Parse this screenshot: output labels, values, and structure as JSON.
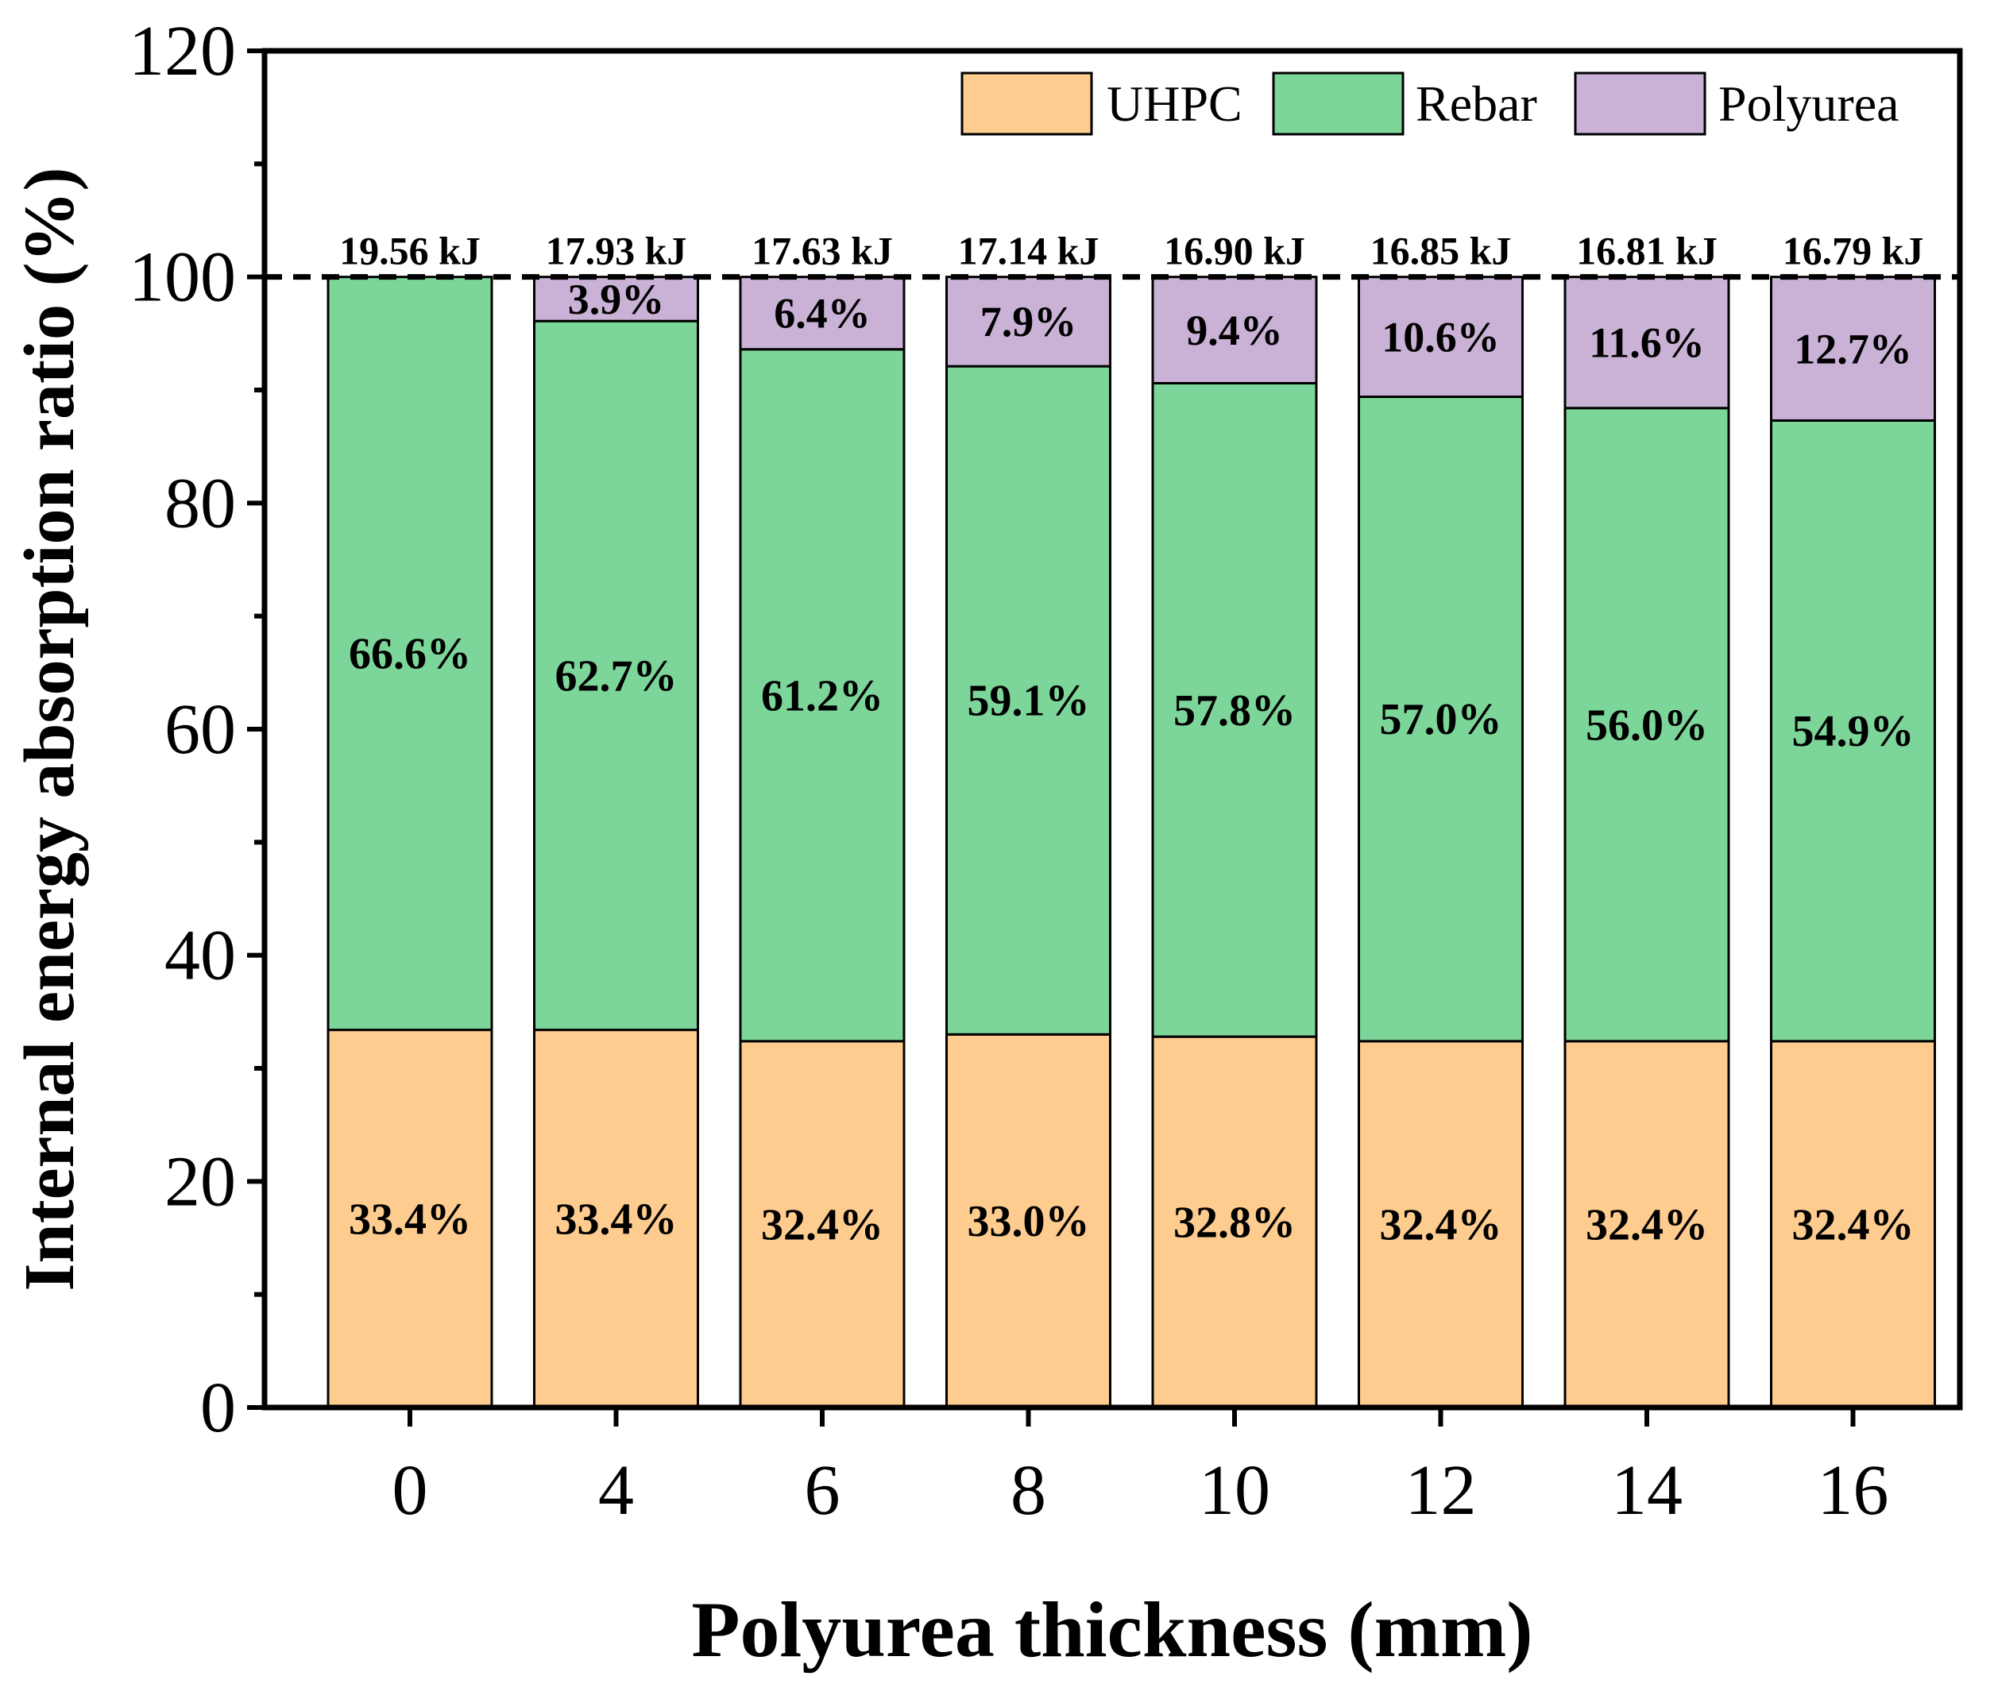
{
  "colors": {
    "UHPC": "#FECC8F",
    "Rebar": "#7DD699",
    "Polyurea": "#CAB2D6",
    "axis": "#000000"
  },
  "chart_data": {
    "type": "bar",
    "stacked": true,
    "title": "",
    "xlabel": "Polyurea thickness (mm)",
    "ylabel": "Internal energy absorption ratio (%)",
    "ylim": [
      0,
      120
    ],
    "yticks": [
      0,
      20,
      40,
      60,
      80,
      100,
      120
    ],
    "categories": [
      "0",
      "4",
      "6",
      "8",
      "10",
      "12",
      "14",
      "16"
    ],
    "series": [
      {
        "name": "UHPC",
        "values": [
          33.4,
          33.4,
          32.4,
          33.0,
          32.8,
          32.4,
          32.4,
          32.4
        ],
        "labels": [
          "33.4%",
          "33.4%",
          "32.4%",
          "33.0%",
          "32.8%",
          "32.4%",
          "32.4%",
          "32.4%"
        ]
      },
      {
        "name": "Rebar",
        "values": [
          66.6,
          62.7,
          61.2,
          59.1,
          57.8,
          57.0,
          56.0,
          54.9
        ],
        "labels": [
          "66.6%",
          "62.7%",
          "61.2%",
          "59.1%",
          "57.8%",
          "57.0%",
          "56.0%",
          "54.9%"
        ]
      },
      {
        "name": "Polyurea",
        "values": [
          0,
          3.9,
          6.4,
          7.9,
          9.4,
          10.6,
          11.6,
          12.7
        ],
        "labels": [
          "",
          "3.9%",
          "6.4%",
          "7.9%",
          "9.4%",
          "10.6%",
          "11.6%",
          "12.7%"
        ]
      }
    ],
    "totals": [
      "19.56 kJ",
      "17.93 kJ",
      "17.63 kJ",
      "17.14 kJ",
      "16.90 kJ",
      "16.85 kJ",
      "16.81 kJ",
      "16.79 kJ"
    ],
    "reference_line": {
      "y": 100,
      "style": "dashed"
    },
    "legend": {
      "entries": [
        "UHPC",
        "Rebar",
        "Polyurea"
      ],
      "position": "top-right"
    }
  }
}
